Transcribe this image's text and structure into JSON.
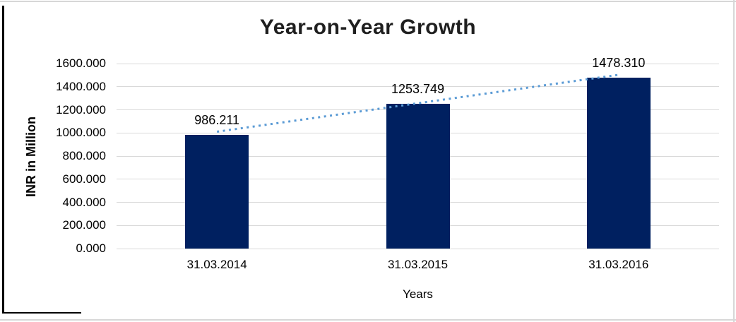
{
  "chart_data": {
    "type": "bar",
    "title": "Year-on-Year Growth",
    "categories": [
      "31.03.2014",
      "31.03.2015",
      "31.03.2016"
    ],
    "values": [
      986.211,
      1253.749,
      1478.31
    ],
    "data_labels": [
      "986.211",
      "1253.749",
      "1478.310"
    ],
    "xlabel": "Years",
    "ylabel": "INR in Million",
    "ylim": [
      0,
      1600
    ],
    "ytick_step": 200,
    "ytick_labels": [
      "1600.000",
      "1400.000",
      "1200.000",
      "1000.000",
      "800.000",
      "600.000",
      "400.000",
      "200.000",
      "0.000"
    ],
    "grid": true,
    "legend": "none",
    "trendline": {
      "type": "linear",
      "style": "dotted",
      "color": "#5B9BD5"
    },
    "colors": {
      "bar": "#002060",
      "gridline": "#D9D9D9",
      "trendline": "#5B9BD5",
      "title": "#1F1F1F",
      "text": "#000000"
    }
  }
}
